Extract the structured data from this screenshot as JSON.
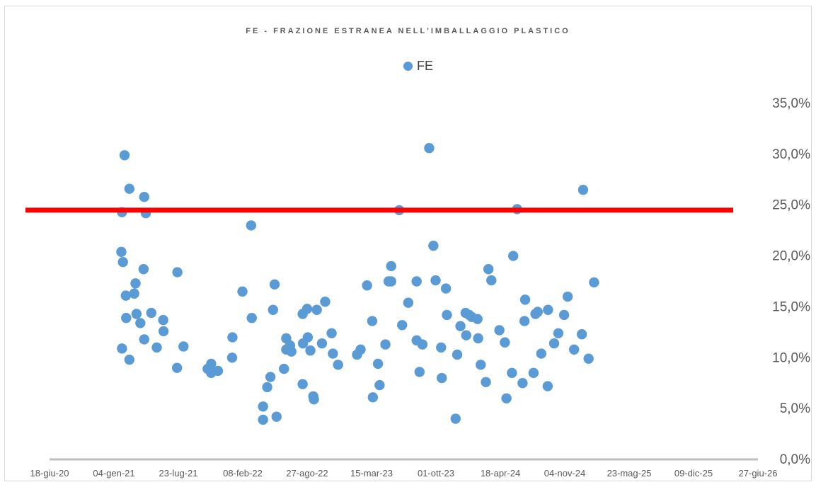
{
  "chart_data": {
    "type": "scatter",
    "title": "FE - FRAZIONE ESTRANEA NELL'IMBALLAGGIO PLASTICO",
    "legend": {
      "entries": [
        "FE"
      ],
      "placement": "top-center"
    },
    "series": [
      {
        "name": "FE",
        "color": "#5b9bd5",
        "points": [
          [
            "2021-01-29",
            24.3
          ],
          [
            "2021-01-29",
            10.9
          ],
          [
            "2021-01-27",
            20.4
          ],
          [
            "2021-02-01",
            19.4
          ],
          [
            "2021-02-06",
            29.9
          ],
          [
            "2021-02-10",
            16.1
          ],
          [
            "2021-02-11",
            13.9
          ],
          [
            "2021-02-21",
            26.6
          ],
          [
            "2021-02-21",
            9.8
          ],
          [
            "2021-03-08",
            16.3
          ],
          [
            "2021-03-12",
            17.3
          ],
          [
            "2021-03-15",
            14.3
          ],
          [
            "2021-03-27",
            13.4
          ],
          [
            "2021-04-08",
            25.8
          ],
          [
            "2021-04-06",
            18.7
          ],
          [
            "2021-04-08",
            11.8
          ],
          [
            "2021-04-13",
            24.2
          ],
          [
            "2021-04-30",
            14.4
          ],
          [
            "2021-05-17",
            11.0
          ],
          [
            "2021-06-06",
            13.7
          ],
          [
            "2021-06-07",
            12.6
          ],
          [
            "2021-07-20",
            18.4
          ],
          [
            "2021-07-19",
            9.0
          ],
          [
            "2021-08-08",
            11.1
          ],
          [
            "2021-10-22",
            8.9
          ],
          [
            "2021-11-02",
            9.4
          ],
          [
            "2021-11-02",
            8.5
          ],
          [
            "2021-11-23",
            8.7
          ],
          [
            "2022-01-06",
            10.0
          ],
          [
            "2022-01-07",
            12.0
          ],
          [
            "2022-02-07",
            16.5
          ],
          [
            "2022-03-06",
            23.0
          ],
          [
            "2022-03-08",
            13.9
          ],
          [
            "2022-04-12",
            5.2
          ],
          [
            "2022-04-12",
            3.9
          ],
          [
            "2022-04-25",
            7.1
          ],
          [
            "2022-05-05",
            8.1
          ],
          [
            "2022-05-13",
            14.7
          ],
          [
            "2022-05-18",
            17.2
          ],
          [
            "2022-05-24",
            4.2
          ],
          [
            "2022-06-16",
            8.9
          ],
          [
            "2022-06-23",
            11.9
          ],
          [
            "2022-06-23",
            10.8
          ],
          [
            "2022-07-05",
            11.2
          ],
          [
            "2022-07-09",
            10.6
          ],
          [
            "2022-08-13",
            14.3
          ],
          [
            "2022-08-13",
            7.4
          ],
          [
            "2022-08-14",
            11.4
          ],
          [
            "2022-08-27",
            14.8
          ],
          [
            "2022-08-29",
            12.0
          ],
          [
            "2022-09-06",
            10.7
          ],
          [
            "2022-09-15",
            6.2
          ],
          [
            "2022-09-17",
            5.9
          ],
          [
            "2022-09-26",
            14.7
          ],
          [
            "2022-10-12",
            11.4
          ],
          [
            "2022-10-22",
            15.5
          ],
          [
            "2022-11-11",
            12.4
          ],
          [
            "2022-11-15",
            10.4
          ],
          [
            "2022-12-01",
            9.3
          ],
          [
            "2023-01-29",
            10.3
          ],
          [
            "2023-02-09",
            10.8
          ],
          [
            "2023-03-01",
            17.1
          ],
          [
            "2023-03-17",
            13.6
          ],
          [
            "2023-03-19",
            6.1
          ],
          [
            "2023-04-04",
            9.4
          ],
          [
            "2023-04-09",
            7.3
          ],
          [
            "2023-04-27",
            11.3
          ],
          [
            "2023-05-07",
            17.5
          ],
          [
            "2023-05-15",
            17.5
          ],
          [
            "2023-05-15",
            19.0
          ],
          [
            "2023-06-09",
            24.5
          ],
          [
            "2023-06-18",
            13.2
          ],
          [
            "2023-07-07",
            15.4
          ],
          [
            "2023-08-02",
            17.5
          ],
          [
            "2023-08-02",
            11.7
          ],
          [
            "2023-08-11",
            8.6
          ],
          [
            "2023-08-20",
            11.3
          ],
          [
            "2023-09-10",
            30.6
          ],
          [
            "2023-09-23",
            21.0
          ],
          [
            "2023-09-30",
            17.6
          ],
          [
            "2023-10-17",
            11.0
          ],
          [
            "2023-10-19",
            8.0
          ],
          [
            "2023-11-01",
            16.8
          ],
          [
            "2023-11-04",
            14.2
          ],
          [
            "2023-12-01",
            4.0
          ],
          [
            "2023-12-06",
            10.3
          ],
          [
            "2023-12-16",
            13.1
          ],
          [
            "2024-01-01",
            14.4
          ],
          [
            "2024-01-03",
            12.2
          ],
          [
            "2024-01-12",
            14.2
          ],
          [
            "2024-01-20",
            14.0
          ],
          [
            "2024-02-07",
            13.8
          ],
          [
            "2024-02-09",
            11.9
          ],
          [
            "2024-02-17",
            9.3
          ],
          [
            "2024-03-04",
            7.6
          ],
          [
            "2024-03-12",
            18.7
          ],
          [
            "2024-03-21",
            17.6
          ],
          [
            "2024-04-15",
            12.7
          ],
          [
            "2024-05-02",
            11.5
          ],
          [
            "2024-05-07",
            6.0
          ],
          [
            "2024-05-24",
            8.5
          ],
          [
            "2024-05-28",
            20.0
          ],
          [
            "2024-06-09",
            24.6
          ],
          [
            "2024-06-26",
            7.5
          ],
          [
            "2024-07-02",
            13.6
          ],
          [
            "2024-07-04",
            15.7
          ],
          [
            "2024-07-30",
            8.5
          ],
          [
            "2024-08-05",
            14.3
          ],
          [
            "2024-08-12",
            14.5
          ],
          [
            "2024-08-23",
            10.4
          ],
          [
            "2024-09-12",
            7.2
          ],
          [
            "2024-09-13",
            14.7
          ],
          [
            "2024-10-02",
            11.4
          ],
          [
            "2024-10-15",
            12.4
          ],
          [
            "2024-11-02",
            14.2
          ],
          [
            "2024-11-13",
            16.0
          ],
          [
            "2024-12-03",
            10.8
          ],
          [
            "2024-12-27",
            12.3
          ],
          [
            "2024-12-31",
            26.5
          ],
          [
            "2025-01-17",
            9.9
          ],
          [
            "2025-02-03",
            17.4
          ]
        ]
      }
    ],
    "reference_line": {
      "value": 24.5,
      "color": "#ff0000"
    },
    "x_axis": {
      "type": "date",
      "range": [
        "2020-06-18",
        "2026-06-27"
      ],
      "tick_labels": [
        "18-giu-20",
        "04-gen-21",
        "23-lug-21",
        "08-feb-22",
        "27-ago-22",
        "15-mar-23",
        "01-ott-23",
        "18-apr-24",
        "04-nov-24",
        "23-mag-25",
        "09-dic-25",
        "27-giu-26"
      ]
    },
    "y_axis": {
      "range": [
        0,
        35
      ],
      "position": "right",
      "tick_labels": [
        "0,0%",
        "5,0%",
        "10,0%",
        "15,0%",
        "20,0%",
        "25,0%",
        "30,0%",
        "35,0%"
      ]
    },
    "grid": false
  }
}
